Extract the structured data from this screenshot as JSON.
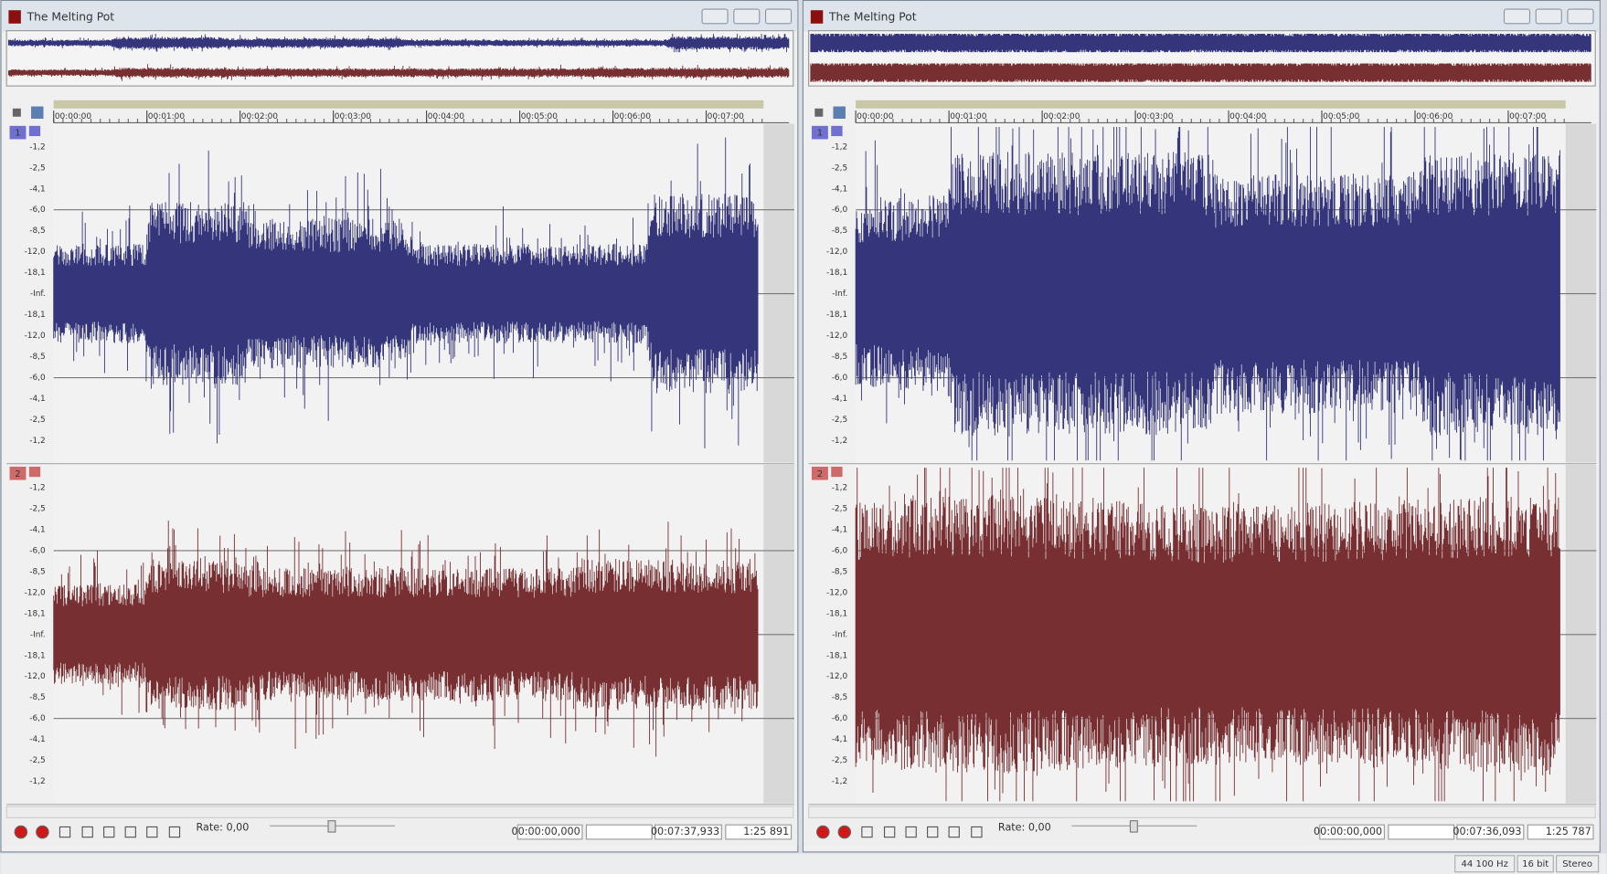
{
  "windows": [
    {
      "title": "The Melting Pot",
      "ruler": [
        "00:00:00",
        "00:01:00",
        "00:02:00",
        "00:03:00",
        "00:04:00",
        "00:05:00",
        "00:06:00",
        "00:07:00"
      ],
      "channels": [
        "1",
        "2"
      ],
      "db_scale": [
        "-1,2",
        "-2,5",
        "-4,1",
        "-6,0",
        "-8,5",
        "-12,0",
        "-18,1",
        "-Inf.",
        "-18,1",
        "-12,0",
        "-8,5",
        "-6,0",
        "-4,1",
        "-2,5",
        "-1,2"
      ],
      "rate": "Rate: 0,00",
      "fields": [
        "00:00:00,000",
        "00:07:37,933",
        "1:25 891"
      ]
    },
    {
      "title": "The Melting Pot",
      "ruler": [
        "00:00:00",
        "00:01:00",
        "00:02:00",
        "00:03:00",
        "00:04:00",
        "00:05:00",
        "00:06:00",
        "00:07:00"
      ],
      "channels": [
        "1",
        "2"
      ],
      "db_scale": [
        "-1,2",
        "-2,5",
        "-4,1",
        "-6,0",
        "-8,5",
        "-12,0",
        "-18,1",
        "-Inf.",
        "-18,1",
        "-12,0",
        "-8,5",
        "-6,0",
        "-4,1",
        "-2,5",
        "-1,2"
      ],
      "rate": "Rate: 0,00",
      "fields": [
        "00:00:00,000",
        "00:07:36,093",
        "1:25 787"
      ]
    }
  ],
  "status": [
    "44 100 Hz",
    "16 bit",
    "Stereo"
  ]
}
